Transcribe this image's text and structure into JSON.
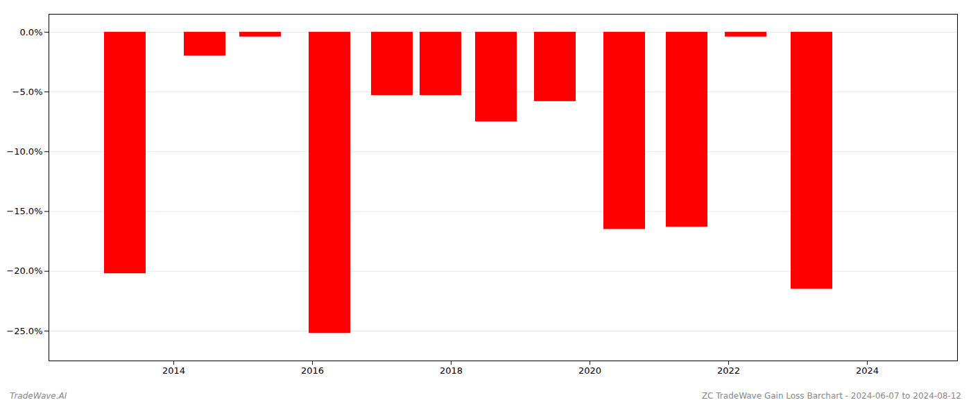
{
  "chart_data": {
    "type": "bar",
    "x": [
      2013.3,
      2014.45,
      2015.25,
      2016.25,
      2017.15,
      2017.85,
      2018.65,
      2019.5,
      2020.5,
      2021.4,
      2022.25,
      2023.2
    ],
    "values": [
      -20.2,
      -2.0,
      -0.4,
      -25.2,
      -5.3,
      -5.3,
      -7.5,
      -5.8,
      -16.5,
      -16.3,
      -0.4,
      -21.5
    ],
    "color": "#ff0000",
    "xlim": [
      2012.2,
      2025.3
    ],
    "xticks": [
      2014,
      2016,
      2018,
      2020,
      2022,
      2024
    ],
    "ylim": [
      -27.5,
      1.5
    ],
    "yticks": [
      {
        "value": 0.0,
        "label": "0.0%"
      },
      {
        "value": -5.0,
        "label": "−5.0%"
      },
      {
        "value": -10.0,
        "label": "−10.0%"
      },
      {
        "value": -15.0,
        "label": "−15.0%"
      },
      {
        "value": -20.0,
        "label": "−20.0%"
      },
      {
        "value": -25.0,
        "label": "−25.0%"
      }
    ],
    "grid": true,
    "annotations": [
      "TradeWave.AI",
      "ZC TradeWave Gain Loss Barchart - 2024-06-07 to 2024-08-12"
    ]
  }
}
